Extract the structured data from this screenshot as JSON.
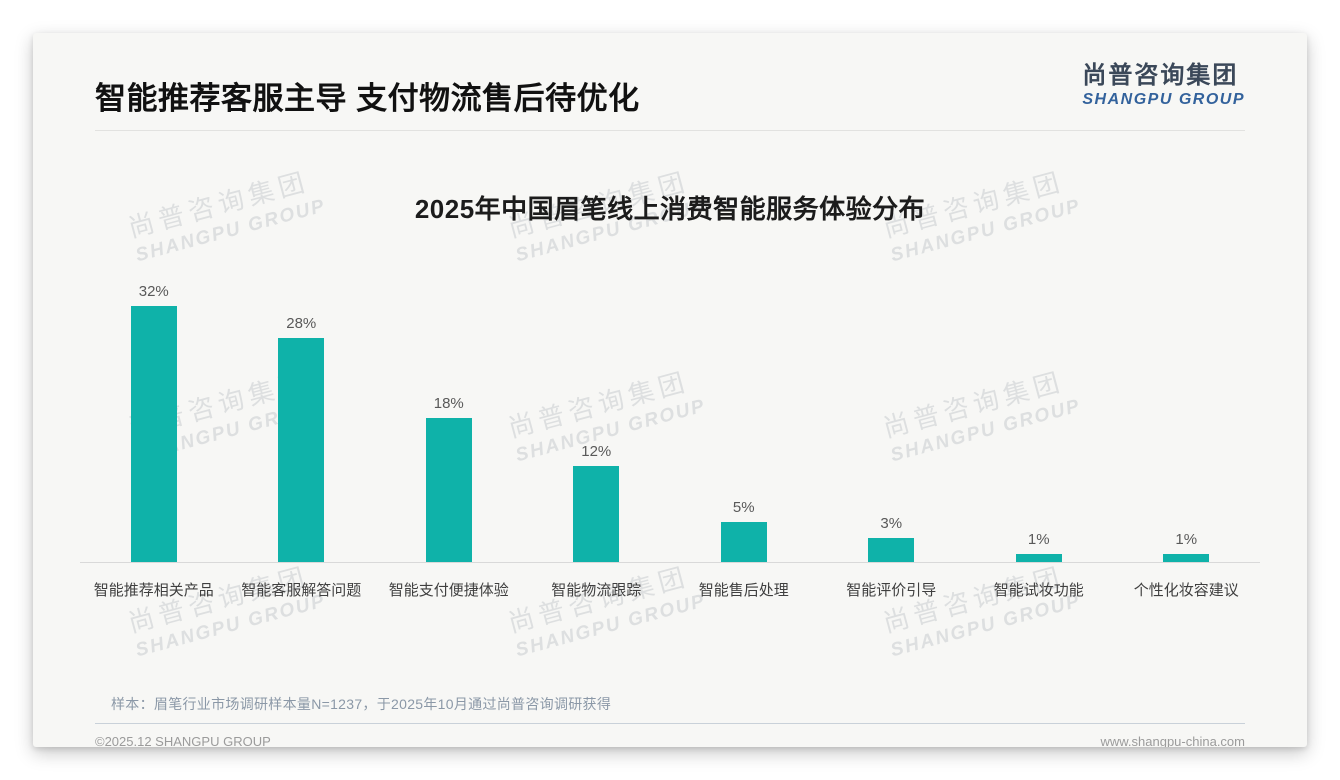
{
  "page": {
    "headline": "智能推荐客服主导 支付物流售后待优化",
    "logo": {
      "cn": "尚普咨询集团",
      "en": "SHANGPU GROUP"
    },
    "watermark": {
      "cn": "尚普咨询集团",
      "en": "SHANGPU GROUP"
    },
    "note": "样本：眉笔行业市场调研样本量N=1237，于2025年10月通过尚普咨询调研获得",
    "footer": {
      "left": "©2025.12 SHANGPU GROUP",
      "right": "www.shangpu-china.com"
    }
  },
  "chart_data": {
    "type": "bar",
    "title": "2025年中国眉笔线上消费智能服务体验分布",
    "categories": [
      "智能推荐相关产品",
      "智能客服解答问题",
      "智能支付便捷体验",
      "智能物流跟踪",
      "智能售后处理",
      "智能评价引导",
      "智能试妆功能",
      "个性化妆容建议"
    ],
    "values": [
      32,
      28,
      18,
      12,
      5,
      3,
      1,
      1
    ],
    "value_labels": [
      "32%",
      "28%",
      "18%",
      "12%",
      "5%",
      "3%",
      "1%",
      "1%"
    ],
    "bar_color": "#0fb2a9",
    "ylim": [
      0,
      35
    ],
    "xlabel": "",
    "ylabel": "",
    "grid": false,
    "legend": "none"
  },
  "colors": {
    "bar": "#0fb2a9",
    "logo_dark": "#3b4859",
    "logo_blue": "#33629c",
    "card_bg": "#f7f7f5",
    "note_text": "#8b98a7"
  }
}
